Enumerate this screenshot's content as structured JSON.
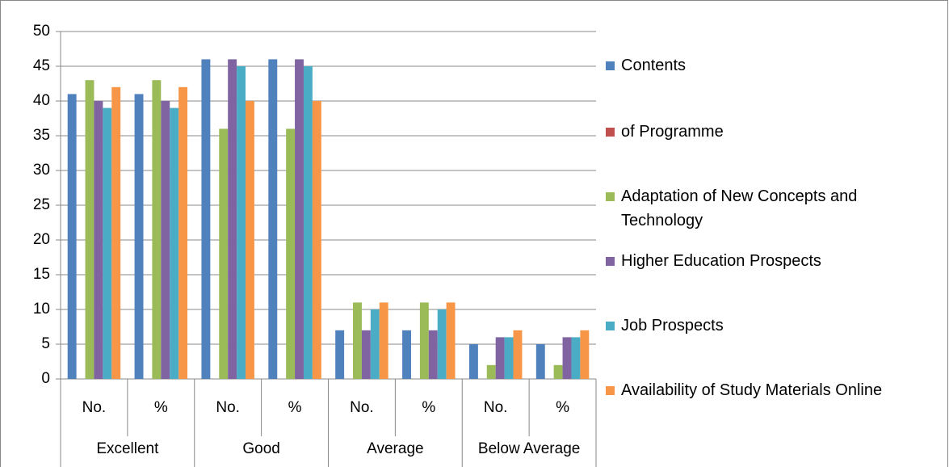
{
  "chart_data": {
    "type": "bar",
    "categories": [
      "No.",
      "%",
      "No.",
      "%",
      "No.",
      "%",
      "No.",
      "%"
    ],
    "groups": [
      "Excellent",
      "Good",
      "Average",
      "Below Average"
    ],
    "series": [
      {
        "name": "Contents",
        "color": "#4F81BD",
        "values": [
          41,
          41,
          46,
          46,
          7,
          7,
          5,
          5
        ]
      },
      {
        "name": "of Programme",
        "color": "#C0504D",
        "values": [
          null,
          null,
          null,
          null,
          null,
          null,
          null,
          null
        ]
      },
      {
        "name": "Adaptation of New Concepts and Technology",
        "color": "#9BBB59",
        "values": [
          43,
          43,
          36,
          36,
          11,
          11,
          2,
          2
        ]
      },
      {
        "name": "Higher Education Prospects",
        "color": "#8064A2",
        "values": [
          40,
          40,
          46,
          46,
          7,
          7,
          6,
          6
        ]
      },
      {
        "name": "Job Prospects",
        "color": "#4BACC6",
        "values": [
          39,
          39,
          45,
          45,
          10,
          10,
          6,
          6
        ]
      },
      {
        "name": "Availability of Study Materials Online",
        "color": "#F79646",
        "values": [
          42,
          42,
          40,
          40,
          11,
          11,
          7,
          7
        ]
      }
    ],
    "ylim": [
      0,
      50
    ],
    "yticks": [
      0,
      5,
      10,
      15,
      20,
      25,
      30,
      35,
      40,
      45,
      50
    ],
    "grid": true,
    "legend": "right"
  }
}
